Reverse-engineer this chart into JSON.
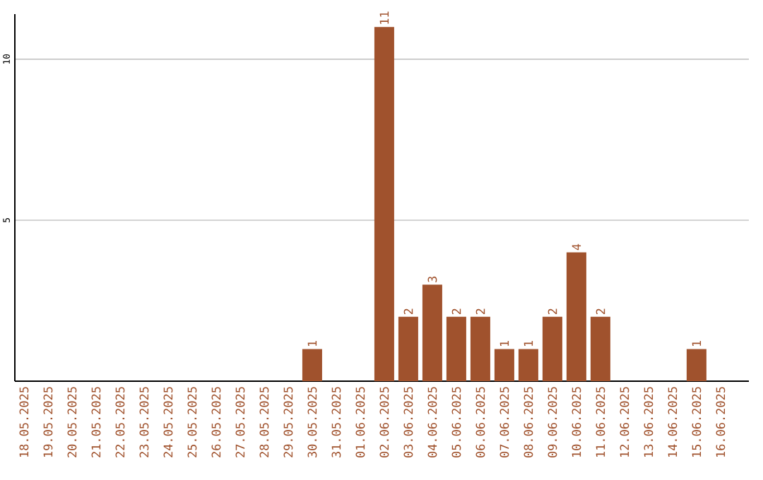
{
  "chart_data": {
    "type": "bar",
    "categories": [
      "18.05.2025",
      "19.05.2025",
      "20.05.2025",
      "21.05.2025",
      "22.05.2025",
      "23.05.2025",
      "24.05.2025",
      "25.05.2025",
      "26.05.2025",
      "27.05.2025",
      "28.05.2025",
      "29.05.2025",
      "30.05.2025",
      "31.05.2025",
      "01.06.2025",
      "02.06.2025",
      "03.06.2025",
      "04.06.2025",
      "05.06.2025",
      "06.06.2025",
      "07.06.2025",
      "08.06.2025",
      "09.06.2025",
      "10.06.2025",
      "11.06.2025",
      "12.06.2025",
      "13.06.2025",
      "14.06.2025",
      "15.06.2025",
      "16.06.2025"
    ],
    "values": [
      0,
      0,
      0,
      0,
      0,
      0,
      0,
      0,
      0,
      0,
      0,
      0,
      1,
      0,
      0,
      11,
      2,
      3,
      2,
      2,
      1,
      1,
      2,
      4,
      2,
      0,
      0,
      0,
      1,
      0
    ],
    "value_labels": [
      null,
      null,
      null,
      null,
      null,
      null,
      null,
      null,
      null,
      null,
      null,
      null,
      "1",
      null,
      null,
      "11",
      "2",
      "3",
      "2",
      "2",
      "1",
      "1",
      "2",
      "4",
      "2",
      null,
      null,
      null,
      "1",
      null
    ],
    "color": "#a0522d",
    "ylim": [
      0,
      11.4
    ],
    "yticks": [
      5,
      10
    ],
    "grid": "y"
  }
}
